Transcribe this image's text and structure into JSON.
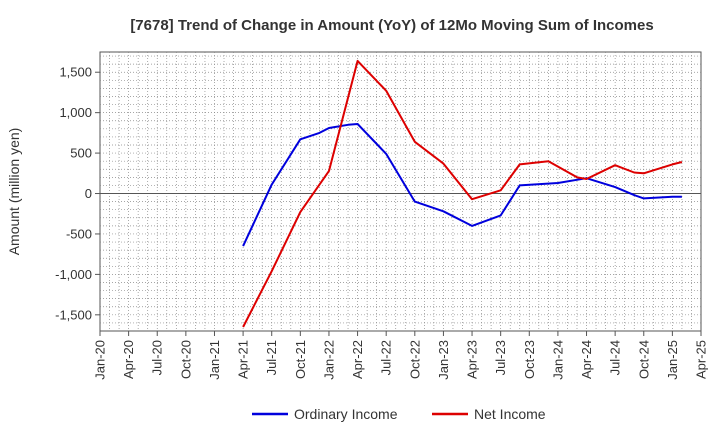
{
  "chart_data": {
    "type": "line",
    "title": "[7678]  Trend of Change in Amount (YoY) of 12Mo Moving Sum of Incomes",
    "xlabel": "",
    "ylabel": "Amount (million yen)",
    "ylim": [
      -1700,
      1750
    ],
    "yticks": [
      -1500,
      -1000,
      -500,
      0,
      500,
      1000,
      1500
    ],
    "ytick_labels": [
      "-1,500",
      "-1,000",
      "-500",
      "0",
      "500",
      "1,000",
      "1,500"
    ],
    "xticks": [
      "Jan-20",
      "Apr-20",
      "Jul-20",
      "Oct-20",
      "Jan-21",
      "Apr-21",
      "Jul-21",
      "Oct-21",
      "Jan-22",
      "Apr-22",
      "Jul-22",
      "Oct-22",
      "Jan-23",
      "Apr-23",
      "Jul-23",
      "Oct-23",
      "Jan-24",
      "Apr-24",
      "Jul-24",
      "Oct-24",
      "Jan-25",
      "Apr-25"
    ],
    "x": [
      "Apr-21",
      "Jul-21",
      "Oct-21",
      "Jan-22",
      "Apr-22",
      "Jul-22",
      "Oct-22",
      "Jan-23",
      "Apr-23",
      "Jul-23",
      "Oct-23",
      "Jan-24",
      "Apr-24",
      "Jul-24",
      "Oct-24",
      "Jan-25"
    ],
    "grid": true,
    "legend_position": "bottom",
    "series": [
      {
        "name": "Ordinary Income",
        "color": "#0000dd",
        "points": [
          [
            "Apr-21",
            -650
          ],
          [
            "Jul-21",
            110
          ],
          [
            "Oct-21",
            670
          ],
          [
            "Dec-21",
            750
          ],
          [
            "Jan-22",
            810
          ],
          [
            "Mar-22",
            850
          ],
          [
            "Apr-22",
            860
          ],
          [
            "Jul-22",
            490
          ],
          [
            "Oct-22",
            -100
          ],
          [
            "Jan-23",
            -220
          ],
          [
            "Apr-23",
            -400
          ],
          [
            "Jul-23",
            -270
          ],
          [
            "Sep-23",
            100
          ],
          [
            "Jan-24",
            130
          ],
          [
            "Apr-24",
            190
          ],
          [
            "Jul-24",
            80
          ],
          [
            "Sep-24",
            -20
          ],
          [
            "Oct-24",
            -60
          ],
          [
            "Jan-25",
            -40
          ],
          [
            "Feb-25",
            -40
          ]
        ]
      },
      {
        "name": "Net Income",
        "color": "#dd0000",
        "points": [
          [
            "Apr-21",
            -1650
          ],
          [
            "Jul-21",
            -960
          ],
          [
            "Oct-21",
            -230
          ],
          [
            "Jan-22",
            280
          ],
          [
            "Apr-22",
            1640
          ],
          [
            "Jul-22",
            1270
          ],
          [
            "Oct-22",
            640
          ],
          [
            "Jan-23",
            370
          ],
          [
            "Apr-23",
            -70
          ],
          [
            "Jul-23",
            40
          ],
          [
            "Sep-23",
            360
          ],
          [
            "Dec-23",
            400
          ],
          [
            "Mar-24",
            200
          ],
          [
            "Apr-24",
            180
          ],
          [
            "Jul-24",
            350
          ],
          [
            "Sep-24",
            260
          ],
          [
            "Oct-24",
            250
          ],
          [
            "Jan-25",
            360
          ],
          [
            "Feb-25",
            390
          ]
        ]
      }
    ]
  }
}
